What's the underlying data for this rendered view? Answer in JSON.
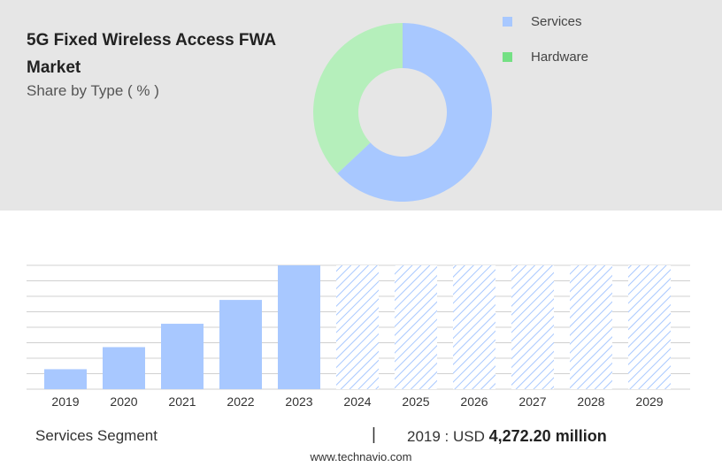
{
  "header": {
    "title": "5G Fixed Wireless Access FWA Market",
    "subtitle": "Share by Type ( % )"
  },
  "colors": {
    "services": "#a8c8ff",
    "hardware": "#b5efbb",
    "hardware_legend": "#74e084",
    "bar": "#a8c8ff",
    "forecast_hatch": "#a8c8ff"
  },
  "chart_data": [
    {
      "type": "pie",
      "donut": true,
      "legend_position": "top-right",
      "categories": [
        "Services",
        "Hardware"
      ],
      "values": [
        63,
        37
      ]
    },
    {
      "type": "bar",
      "categories": [
        "2019",
        "2020",
        "2021",
        "2022",
        "2023",
        "2024",
        "2025",
        "2026",
        "2027",
        "2028",
        "2029"
      ],
      "values": [
        4272.2,
        9000,
        14000,
        19100,
        26500,
        null,
        null,
        null,
        null,
        null,
        null
      ],
      "forecast_categories": [
        "2024",
        "2025",
        "2026",
        "2027",
        "2028",
        "2029"
      ],
      "grid": true,
      "ylim": [
        0,
        26500
      ]
    }
  ],
  "footer": {
    "segment_label": "Services Segment",
    "divider": "|",
    "year_prefix": "2019 : USD",
    "value_text": "4,272.20 million",
    "source": "www.technavio.com"
  }
}
